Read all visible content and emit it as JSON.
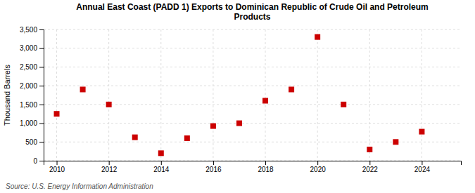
{
  "chart_data": {
    "type": "scatter",
    "title": "Annual East Coast (PADD 1) Exports to Dominican Republic of Crude Oil and Petroleum\nProducts",
    "y_label": "Thousand Barrels",
    "source": "Source: U.S. Energy Information Administration",
    "x": [
      2010,
      2011,
      2012,
      2013,
      2014,
      2015,
      2016,
      2017,
      2018,
      2019,
      2020,
      2021,
      2022,
      2023,
      2024
    ],
    "values": [
      1250,
      1900,
      1500,
      625,
      200,
      600,
      925,
      1000,
      1600,
      1900,
      3300,
      1500,
      300,
      500,
      775
    ],
    "color": "#CC0000",
    "marker": "square",
    "xlim": [
      2009.5,
      2025.5
    ],
    "xticks": [
      2010,
      2012,
      2014,
      2016,
      2018,
      2020,
      2022,
      2024
    ],
    "ylim": [
      0,
      3500
    ],
    "yticks": [
      0,
      500,
      {
        "value": 1000,
        "label": "1,000"
      },
      {
        "value": 1500,
        "label": "1,500"
      },
      {
        "value": 2000,
        "label": "2,000"
      },
      {
        "value": 2500,
        "label": "2,500"
      },
      {
        "value": 3000,
        "label": "3,000"
      },
      {
        "value": 3500,
        "label": "3,500"
      }
    ],
    "grid": true
  }
}
